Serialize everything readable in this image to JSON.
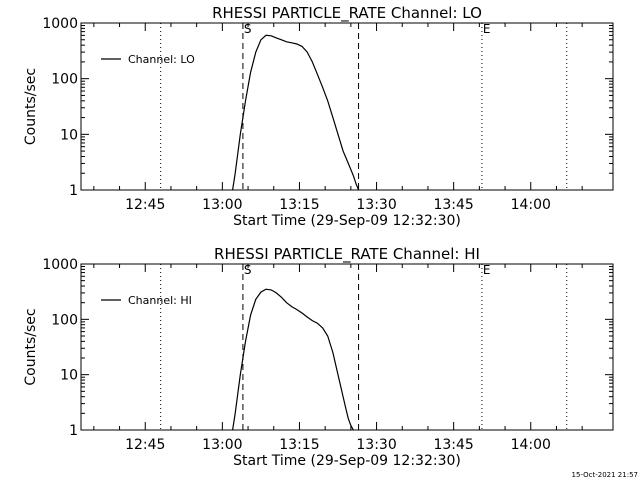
{
  "timestamp": "15-Oct-2021 21:57",
  "chart_data": [
    {
      "type": "line",
      "title": "RHESSI PARTICLE_RATE Channel: LO",
      "xlabel": "Start Time (29-Sep-09 12:32:30)",
      "ylabel": "Counts/sec",
      "x_ticks": [
        "12:45",
        "13:00",
        "13:15",
        "13:30",
        "13:45",
        "14:00"
      ],
      "y_ticks": [
        "1",
        "10",
        "100",
        "1000"
      ],
      "yscale": "log",
      "ylim": [
        1,
        1000
      ],
      "xlim": [
        "12:32:30",
        "14:16:00"
      ],
      "legend": {
        "label": "Channel: LO",
        "position": "top-left"
      },
      "markers": [
        {
          "label": "S",
          "time": "13:04:00",
          "style": "dashed"
        },
        {
          "label": "",
          "time": "13:26:30",
          "style": "dashed"
        },
        {
          "label": "",
          "time": "12:48:00",
          "style": "dotted"
        },
        {
          "label": "E",
          "time": "13:50:30",
          "style": "dotted"
        },
        {
          "label": "",
          "time": "14:07:00",
          "style": "dotted"
        }
      ],
      "series": [
        {
          "name": "Channel: LO",
          "x": [
            "13:02:00",
            "13:02:30",
            "13:03:30",
            "13:04:30",
            "13:05:30",
            "13:06:30",
            "13:07:30",
            "13:08:30",
            "13:09:30",
            "13:10:30",
            "13:11:30",
            "13:12:30",
            "13:13:30",
            "13:14:30",
            "13:15:30",
            "13:16:30",
            "13:17:30",
            "13:18:30",
            "13:19:30",
            "13:20:30",
            "13:21:30",
            "13:22:30",
            "13:23:30",
            "13:24:30",
            "13:25:30",
            "13:26:00",
            "13:26:30"
          ],
          "y": [
            1,
            2,
            10,
            40,
            130,
            300,
            500,
            600,
            590,
            540,
            500,
            460,
            440,
            420,
            380,
            300,
            200,
            120,
            70,
            40,
            20,
            10,
            5,
            3,
            1.8,
            1.3,
            1
          ]
        }
      ]
    },
    {
      "type": "line",
      "title": "RHESSI PARTICLE_RATE Channel: HI",
      "xlabel": "Start Time (29-Sep-09 12:32:30)",
      "ylabel": "Counts/sec",
      "x_ticks": [
        "12:45",
        "13:00",
        "13:15",
        "13:30",
        "13:45",
        "14:00"
      ],
      "y_ticks": [
        "1",
        "10",
        "100",
        "1000"
      ],
      "yscale": "log",
      "ylim": [
        1,
        1000
      ],
      "xlim": [
        "12:32:30",
        "14:16:00"
      ],
      "legend": {
        "label": "Channel: HI",
        "position": "top-left"
      },
      "markers": [
        {
          "label": "S",
          "time": "13:04:00",
          "style": "dashed"
        },
        {
          "label": "",
          "time": "13:26:30",
          "style": "dashed"
        },
        {
          "label": "",
          "time": "12:48:00",
          "style": "dotted"
        },
        {
          "label": "E",
          "time": "13:50:30",
          "style": "dotted"
        },
        {
          "label": "",
          "time": "14:07:00",
          "style": "dotted"
        }
      ],
      "series": [
        {
          "name": "Channel: HI",
          "x": [
            "13:02:00",
            "13:02:30",
            "13:03:30",
            "13:04:30",
            "13:05:30",
            "13:06:30",
            "13:07:30",
            "13:08:30",
            "13:09:30",
            "13:10:30",
            "13:11:30",
            "13:12:30",
            "13:13:30",
            "13:14:30",
            "13:15:30",
            "13:16:30",
            "13:17:30",
            "13:18:30",
            "13:19:30",
            "13:20:30",
            "13:21:30",
            "13:22:30",
            "13:23:30",
            "13:24:00",
            "13:24:30",
            "13:25:00",
            "13:25:30"
          ],
          "y": [
            1,
            2,
            10,
            40,
            120,
            230,
            310,
            350,
            340,
            300,
            250,
            200,
            170,
            150,
            130,
            110,
            95,
            85,
            70,
            50,
            25,
            10,
            4,
            2.5,
            1.6,
            1.2,
            1
          ]
        }
      ]
    }
  ]
}
